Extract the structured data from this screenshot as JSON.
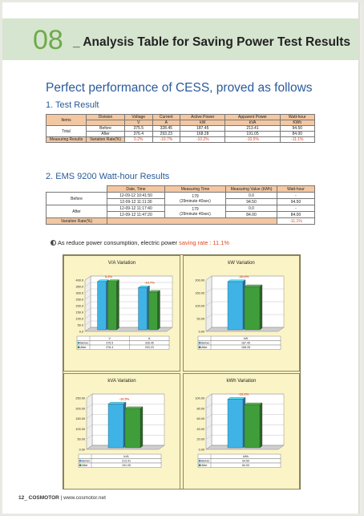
{
  "header": {
    "number": "08",
    "separator": "_",
    "title": "Analysis Table for Saving Power Test Results"
  },
  "lead": "Perfect performance of CESS, proved as follows",
  "section1": {
    "title": "1. Test Result",
    "col_item": "Items",
    "columns": [
      {
        "label": "Division",
        "unit": ""
      },
      {
        "label": "Voltage",
        "unit": "V"
      },
      {
        "label": "Current",
        "unit": "A"
      },
      {
        "label": "Active Power",
        "unit": "kW"
      },
      {
        "label": "Apparent Power",
        "unit": "kVA"
      },
      {
        "label": "Watt-hour",
        "unit": "KWh"
      }
    ],
    "total_label": "Total",
    "rows": [
      {
        "division": "Before",
        "values": [
          "375.5",
          "328.45",
          "187.45",
          "213.41",
          "94.50"
        ]
      },
      {
        "division": "After",
        "values": [
          "376.4",
          "293.23",
          "168.28",
          "191.05",
          "84.00"
        ]
      }
    ],
    "result_label": "Measuring Results",
    "rate_label": "Variation Rate(%)",
    "rates": [
      "0.2%",
      "-10.7%",
      "-10.2%",
      "-10.5%",
      "-11.1%"
    ]
  },
  "section2": {
    "title": "2. EMS 9200 Watt-hour Results",
    "columns": [
      "Date, Time",
      "Measuring Time",
      "Measuring Value (kWh)",
      "Watt-hour"
    ],
    "before_label": "Before",
    "after_label": "After",
    "before": {
      "times": [
        "12-09-12 10:41:50",
        "12-09-12 11:11:30"
      ],
      "measure_top": "179",
      "measure_bottom": "(29minute 40sec)",
      "values": [
        "0.0",
        "94.50"
      ],
      "watt": [
        "-",
        "94.50"
      ]
    },
    "after": {
      "times": [
        "12-09-12 11:17:40",
        "12-09-12 11:47:20"
      ],
      "measure_top": "179",
      "measure_bottom": "(29minute 40sec)",
      "values": [
        "0.0",
        "84.00"
      ],
      "watt": [
        "-",
        "84.00"
      ]
    },
    "rate_label": "Variation Rate(%)",
    "rate": "-11.1%"
  },
  "note": {
    "text": "As reduce power consumption, electric power ",
    "saving": "saving rate : 11.1%"
  },
  "colors": {
    "before": "#3fb3e6",
    "after": "#3f9e3a",
    "header_bg": "#d6e5cf",
    "accent": "#6faa4a",
    "rate": "#e04a1e"
  },
  "chart_data": [
    {
      "type": "bar",
      "title": "V/A Variation",
      "categories": [
        "V",
        "A"
      ],
      "series": [
        {
          "name": "Before",
          "values": [
            375.5,
            328.45
          ]
        },
        {
          "name": "After",
          "values": [
            376.4,
            293.23
          ]
        }
      ],
      "labels": [
        "0.2%",
        "-10.7%"
      ],
      "yticks": [
        "400.0",
        "350.0",
        "300.0",
        "250.0",
        "200.0",
        "150.0",
        "100.0",
        "50.0",
        "0.0"
      ],
      "ylim": [
        0,
        400
      ],
      "table": [
        [
          "375.5",
          "328.45"
        ],
        [
          "376.4",
          "293.23"
        ]
      ]
    },
    {
      "type": "bar",
      "title": "kW Variation",
      "categories": [
        "kW"
      ],
      "series": [
        {
          "name": "Before",
          "values": [
            187.45
          ]
        },
        {
          "name": "After",
          "values": [
            168.28
          ]
        }
      ],
      "labels": [
        "-10.2%"
      ],
      "yticks": [
        "200.00",
        "150.00",
        "100.00",
        "50.00",
        "0.00"
      ],
      "ylim": [
        0,
        200
      ],
      "table": [
        [
          "187.45"
        ],
        [
          "168.28"
        ]
      ]
    },
    {
      "type": "bar",
      "title": "kVA Variation",
      "categories": [
        "kVA"
      ],
      "series": [
        {
          "name": "Before",
          "values": [
            213.41
          ]
        },
        {
          "name": "After",
          "values": [
            191.05
          ]
        }
      ],
      "labels": [
        "-10.5%"
      ],
      "yticks": [
        "250.00",
        "200.00",
        "150.00",
        "100.00",
        "50.00",
        "0.00"
      ],
      "ylim": [
        0,
        250
      ],
      "table": [
        [
          "213.41"
        ],
        [
          "191.05"
        ]
      ]
    },
    {
      "type": "bar",
      "title": "kWh Variation",
      "categories": [
        "kWh"
      ],
      "series": [
        {
          "name": "Before",
          "values": [
            94.5
          ]
        },
        {
          "name": "After",
          "values": [
            84.0
          ]
        }
      ],
      "labels": [
        "-11.1%"
      ],
      "yticks": [
        "100.00",
        "80.00",
        "60.00",
        "40.00",
        "20.00",
        "0.00"
      ],
      "ylim": [
        0,
        100
      ],
      "table": [
        [
          "94.50"
        ],
        [
          "84.00"
        ]
      ]
    }
  ],
  "footer": {
    "page": "12",
    "sep": "_",
    "brand": "COSMOTOR",
    "url": "| www.cosmotor.net"
  }
}
